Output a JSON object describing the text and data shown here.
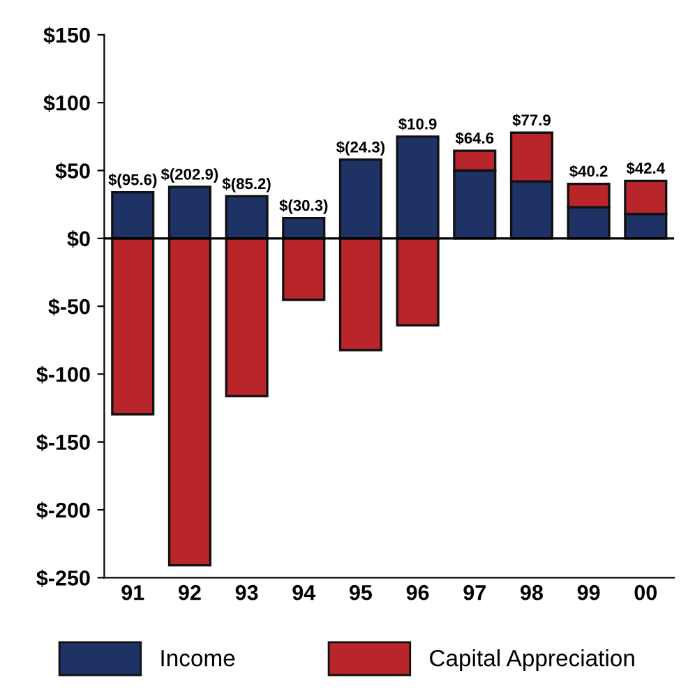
{
  "chart_data": {
    "type": "bar",
    "stacked": true,
    "categories": [
      "91",
      "92",
      "93",
      "94",
      "95",
      "96",
      "97",
      "98",
      "99",
      "00"
    ],
    "series": [
      {
        "name": "Income",
        "color": "#1f3266",
        "values": [
          34,
          38,
          31,
          15,
          58,
          75,
          50,
          42,
          23,
          18
        ]
      },
      {
        "name": "Capital Appreciation",
        "color": "#b8252a",
        "values": [
          -129.6,
          -240.9,
          -116.2,
          -45.3,
          -82.3,
          -64.1,
          14.6,
          35.9,
          17.2,
          24.4
        ]
      }
    ],
    "totals": [
      "$(95.6)",
      "$(202.9)",
      "$(85.2)",
      "$(30.3)",
      "$(24.3)",
      "$10.9",
      "$64.6",
      "$77.9",
      "$40.2",
      "$42.4"
    ],
    "ylim": [
      -250,
      150
    ],
    "yticks": [
      {
        "value": 150,
        "label": "$150"
      },
      {
        "value": 100,
        "label": "$100"
      },
      {
        "value": 50,
        "label": "$50"
      },
      {
        "value": 0,
        "label": "$0"
      },
      {
        "value": -50,
        "label": "$-50"
      },
      {
        "value": -100,
        "label": "$-100"
      },
      {
        "value": -150,
        "label": "$-150"
      },
      {
        "value": -200,
        "label": "$-200"
      },
      {
        "value": -250,
        "label": "$-250"
      }
    ],
    "ref_lines": [
      {
        "axis": "y",
        "value": 0
      }
    ],
    "grid": false,
    "legend": "bottom"
  }
}
